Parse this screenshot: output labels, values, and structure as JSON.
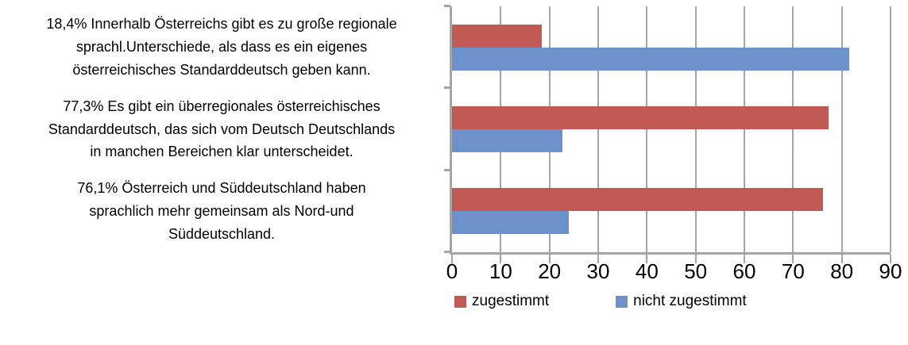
{
  "chart_data": {
    "type": "bar",
    "orientation": "horizontal",
    "xlim": [
      0,
      90
    ],
    "x_ticks": [
      0,
      10,
      20,
      30,
      40,
      50,
      60,
      70,
      80,
      90
    ],
    "grid": true,
    "legend_position": "bottom",
    "categories": [
      {
        "lines": [
          "18,4% Innerhalb Österreichs gibt es zu große regionale",
          "sprachl.Unterschiede, als dass es ein eigenes",
          "österreichisches Standarddeutsch geben kann."
        ]
      },
      {
        "lines": [
          "77,3% Es gibt ein überregionales österreichisches",
          "Standarddeutsch, das sich vom Deutsch Deutschlands",
          "in manchen Bereichen klar unterscheidet."
        ]
      },
      {
        "lines": [
          "76,1% Österreich und Süddeutschland haben",
          "sprachlich mehr gemeinsam als Nord-und",
          "Süddeutschland."
        ]
      }
    ],
    "series": [
      {
        "name": "zugestimmt",
        "color": "#C15A55",
        "values": [
          18.4,
          77.3,
          76.1
        ]
      },
      {
        "name": "nicht zugestimmt",
        "color": "#6D92CB",
        "values": [
          81.6,
          22.7,
          23.9
        ]
      }
    ],
    "colors": {
      "axis": "#A5A5A5",
      "text": "#000000",
      "background": "#FFFFFF"
    }
  }
}
